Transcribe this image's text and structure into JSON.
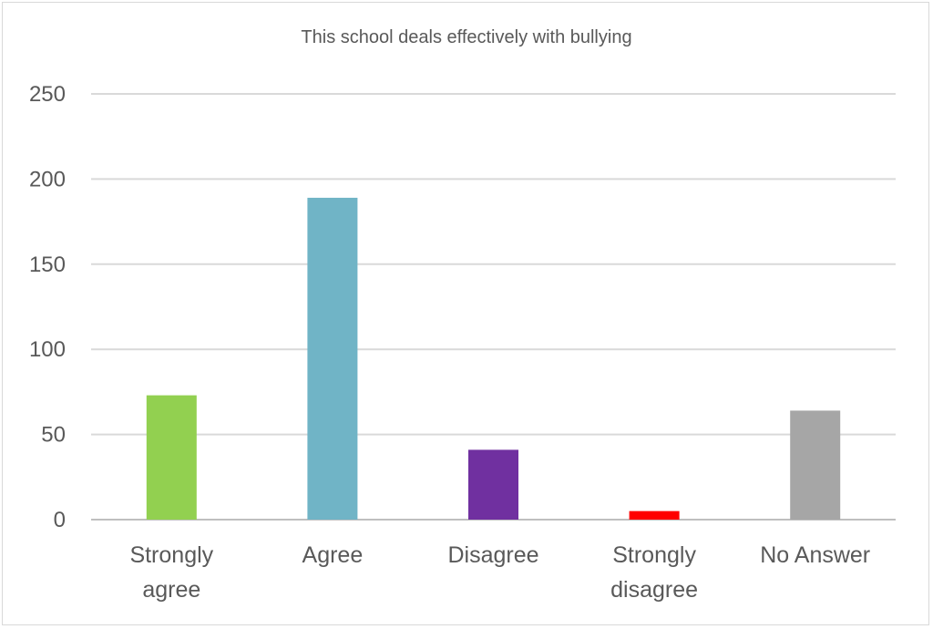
{
  "chart_data": {
    "type": "bar",
    "title": "This school deals effectively with bullying",
    "categories": [
      [
        "Strongly",
        "agree"
      ],
      [
        "Agree"
      ],
      [
        "Disagree"
      ],
      [
        "Strongly",
        "disagree"
      ],
      [
        "No Answer"
      ]
    ],
    "values": [
      73,
      189,
      41,
      5,
      64
    ],
    "colors": [
      "#92d050",
      "#70b4c6",
      "#7030a0",
      "#ff0000",
      "#a6a6a6"
    ],
    "ylim": [
      0,
      250
    ],
    "yticks": [
      0,
      50,
      100,
      150,
      200,
      250
    ],
    "grid": true,
    "legend": "none",
    "xlabel": "",
    "ylabel": ""
  }
}
